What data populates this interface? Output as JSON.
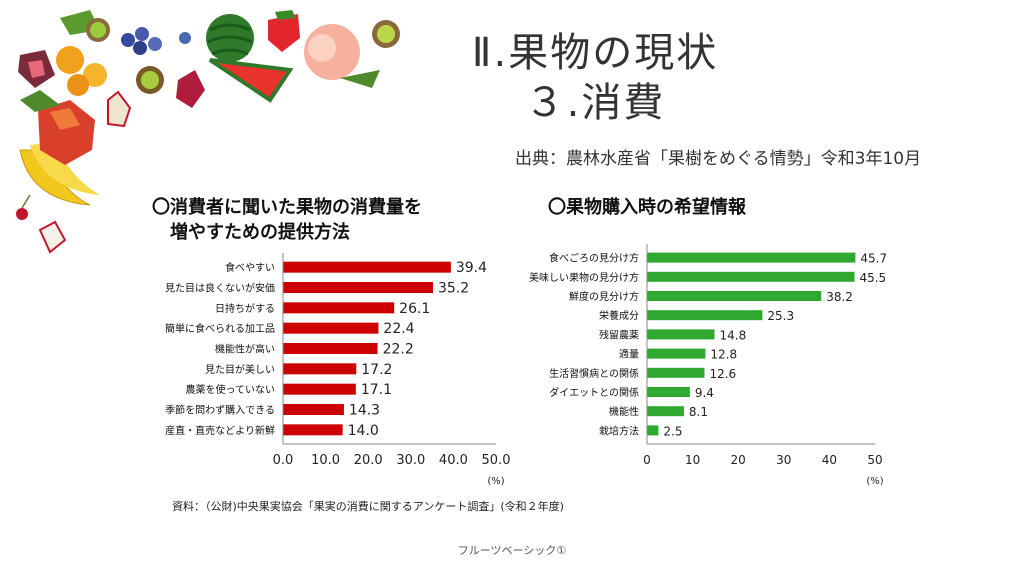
{
  "slide": {
    "title_line1": "Ⅱ.果物の現状",
    "title_line2": "３.消費",
    "source": "出典：農林水産省「果樹をめぐる情勢」令和3年10月",
    "footnote": "資料：（公財)中央果実協会「果実の消費に関するアンケート調査」(令和２年度)",
    "footer": "フルーツベーシック①"
  },
  "chart_data": [
    {
      "type": "bar",
      "orientation": "horizontal",
      "title": "〇消費者に聞いた果物の消費量を増やすための提供方法",
      "title_lines": [
        "〇消費者に聞いた果物の消費量を",
        "　増やすための提供方法"
      ],
      "categories": [
        "食べやすい",
        "見た目は良くないが安価",
        "日持ちがする",
        "簡単に食べられる加工品",
        "機能性が高い",
        "見た目が美しい",
        "農薬を使っていない",
        "季節を問わず購入できる",
        "産直・直売などより新鮮"
      ],
      "values": [
        39.4,
        35.2,
        26.1,
        22.4,
        22.2,
        17.2,
        17.1,
        14.3,
        14.0
      ],
      "value_labels": [
        "39.4",
        "35.2",
        "26.1",
        "22.4",
        "22.2",
        "17.2",
        "17.1",
        "14.3",
        "14.0"
      ],
      "xlim": [
        0,
        50
      ],
      "ticks": [
        "0.0",
        "10.0",
        "20.0",
        "30.0",
        "40.0",
        "50.0"
      ],
      "unit": "(%)",
      "color": "#cc0000",
      "grid": false
    },
    {
      "type": "bar",
      "orientation": "horizontal",
      "title": "〇果物購入時の希望情報",
      "title_lines": [
        "〇果物購入時の希望情報"
      ],
      "categories": [
        "食べごろの見分け方",
        "美味しい果物の見分け方",
        "鮮度の見分け方",
        "栄養成分",
        "残留農薬",
        "適量",
        "生活習慣病との関係",
        "ダイエットとの関係",
        "機能性",
        "栽培方法"
      ],
      "values": [
        45.7,
        45.5,
        38.2,
        25.3,
        14.8,
        12.8,
        12.6,
        9.4,
        8.1,
        2.5
      ],
      "value_labels": [
        "45.7",
        "45.5",
        "38.2",
        "25.3",
        "14.8",
        "12.8",
        "12.6",
        "9.4",
        "8.1",
        "2.5"
      ],
      "xlim": [
        0,
        50
      ],
      "ticks": [
        "0",
        "10",
        "20",
        "30",
        "40",
        "50"
      ],
      "unit": "(%)",
      "color": "#2ea82e",
      "grid": false
    }
  ]
}
